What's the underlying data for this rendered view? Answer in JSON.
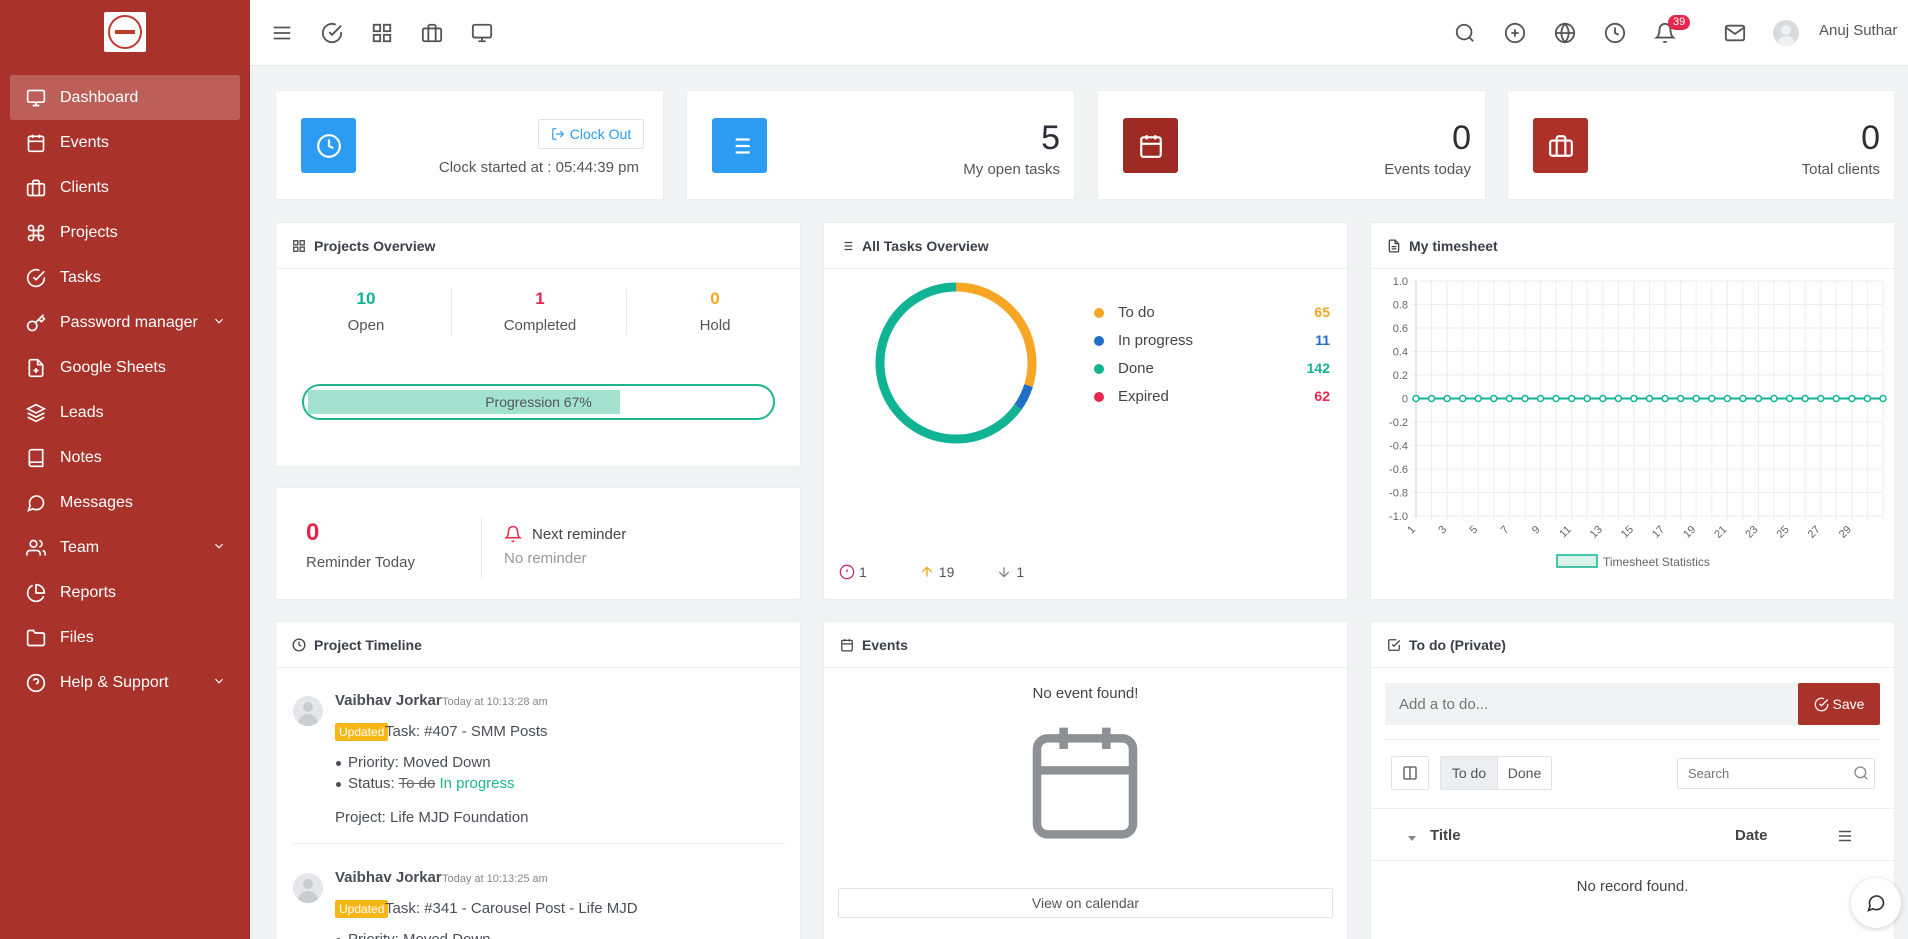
{
  "user": {
    "name": "Anuj Suthar",
    "notification_count": "39"
  },
  "sidebar": {
    "items": [
      {
        "label": "Dashboard"
      },
      {
        "label": "Events"
      },
      {
        "label": "Clients"
      },
      {
        "label": "Projects"
      },
      {
        "label": "Tasks"
      },
      {
        "label": "Password manager"
      },
      {
        "label": "Google Sheets"
      },
      {
        "label": "Leads"
      },
      {
        "label": "Notes"
      },
      {
        "label": "Messages"
      },
      {
        "label": "Team"
      },
      {
        "label": "Reports"
      },
      {
        "label": "Files"
      },
      {
        "label": "Help & Support"
      }
    ]
  },
  "clock": {
    "button": "Clock Out",
    "started": "Clock started at : 05:44:39 pm"
  },
  "stats": {
    "open_tasks": {
      "value": "5",
      "label": "My open tasks"
    },
    "events_today": {
      "value": "0",
      "label": "Events today"
    },
    "total_clients": {
      "value": "0",
      "label": "Total clients"
    }
  },
  "projects_overview": {
    "title": "Projects Overview",
    "open": {
      "value": "10",
      "label": "Open"
    },
    "completed": {
      "value": "1",
      "label": "Completed"
    },
    "hold": {
      "value": "0",
      "label": "Hold"
    },
    "progression_label": "Progression 67%",
    "progression": 0.67
  },
  "reminder": {
    "count": "0",
    "label": "Reminder Today",
    "next_title": "Next reminder",
    "next_value": "No reminder"
  },
  "tasks_overview": {
    "title": "All Tasks Overview",
    "items": [
      {
        "label": "To do",
        "value": "65",
        "color": "#f6a623"
      },
      {
        "label": "In progress",
        "value": "11",
        "color": "#1f6fc6"
      },
      {
        "label": "Done",
        "value": "142",
        "color": "#10b394"
      },
      {
        "label": "Expired",
        "value": "62",
        "color": "#e6264b"
      }
    ],
    "footer": {
      "alert": "1",
      "up": "19",
      "down": "1"
    }
  },
  "timesheet": {
    "title": "My timesheet",
    "legend": "Timesheet Statistics"
  },
  "chart_data": {
    "type": "line",
    "title": "",
    "series": [
      {
        "name": "Timesheet Statistics",
        "values": [
          0,
          0,
          0,
          0,
          0,
          0,
          0,
          0,
          0,
          0,
          0,
          0,
          0,
          0,
          0,
          0,
          0,
          0,
          0,
          0,
          0,
          0,
          0,
          0,
          0,
          0,
          0,
          0,
          0,
          0,
          0
        ]
      }
    ],
    "x": [
      1,
      2,
      3,
      4,
      5,
      6,
      7,
      8,
      9,
      10,
      11,
      12,
      13,
      14,
      15,
      16,
      17,
      18,
      19,
      20,
      21,
      22,
      23,
      24,
      25,
      26,
      27,
      28,
      29,
      30,
      31
    ],
    "x_tick_labels": [
      "1",
      "3",
      "5",
      "7",
      "9",
      "11",
      "13",
      "15",
      "17",
      "19",
      "21",
      "23",
      "25",
      "27",
      "29"
    ],
    "y_tick_labels": [
      "1.0",
      "0.8",
      "0.6",
      "0.4",
      "0.2",
      "0",
      "-0.2",
      "-0.4",
      "-0.6",
      "-0.8",
      "-1.0"
    ],
    "ylim": [
      -1.0,
      1.0
    ],
    "grid": true,
    "legend": "bottom",
    "color": "#10b394"
  },
  "timeline": {
    "title": "Project Timeline",
    "entries": [
      {
        "name": "Vaibhav Jorkar",
        "time": "Today at 10:13:28 am",
        "badge": "Updated",
        "task": "Task: #407 - SMM Posts",
        "priority": "Priority: Moved Down",
        "status_label": "Status:",
        "status_old": "To do",
        "status_new": "In progress",
        "project": "Project: Life MJD Foundation"
      },
      {
        "name": "Vaibhav Jorkar",
        "time": "Today at 10:13:25 am",
        "badge": "Updated",
        "task": "Task: #341 - Carousel Post - Life MJD",
        "priority": "Priority: Moved Down"
      }
    ]
  },
  "events": {
    "title": "Events",
    "empty": "No event found!",
    "button": "View on calendar"
  },
  "todo": {
    "title": "To do (Private)",
    "placeholder": "Add a to do...",
    "save": "Save",
    "tab_todo": "To do",
    "tab_done": "Done",
    "search_placeholder": "Search",
    "col_title": "Title",
    "col_date": "Date",
    "empty": "No record found."
  }
}
